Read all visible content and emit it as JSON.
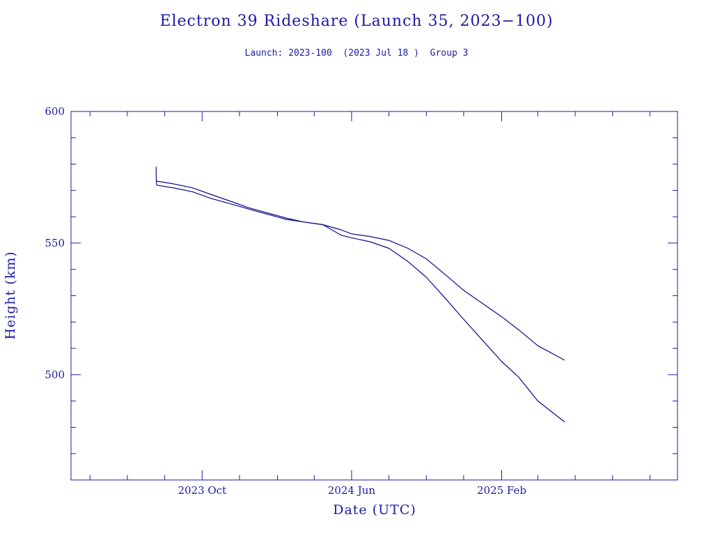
{
  "chart_data": {
    "type": "line",
    "title": "Electron 39 Rideshare (Launch 35, 2023−100)",
    "subtitle": "Launch: 2023-100  (2023 Jul 18 )  Group 3",
    "xlabel": "Date (UTC)",
    "ylabel": "Height (km)",
    "ylim": [
      460,
      600
    ],
    "xlim": [
      "2023-03-01",
      "2025-11-15"
    ],
    "x_ticks": [
      {
        "date": "2023-10-01",
        "label": "2023 Oct"
      },
      {
        "date": "2024-06-01",
        "label": "2024 Jun"
      },
      {
        "date": "2025-02-01",
        "label": "2025 Feb"
      }
    ],
    "y_ticks": [
      {
        "value": 500,
        "label": "500"
      },
      {
        "value": 550,
        "label": "550"
      },
      {
        "value": 600,
        "label": "600"
      }
    ],
    "grid": false,
    "series": [
      {
        "x": [
          "2023-07-18",
          "2023-07-18",
          "2023-07-19",
          "2023-08-15",
          "2023-09-15",
          "2023-10-15",
          "2023-11-15",
          "2023-12-15",
          "2024-01-15",
          "2024-02-15",
          "2024-03-15",
          "2024-04-15",
          "2024-05-15",
          "2024-06-01",
          "2024-07-01",
          "2024-08-01",
          "2024-09-01",
          "2024-10-01",
          "2024-11-01",
          "2024-12-01",
          "2025-01-01",
          "2025-02-01",
          "2025-03-01",
          "2025-04-01",
          "2025-05-15"
        ],
        "y": [
          579,
          574,
          573.5,
          572.5,
          571,
          568.5,
          566,
          563.5,
          561.5,
          559.5,
          558,
          557,
          555,
          553.5,
          552.5,
          551,
          548,
          544,
          538,
          532,
          527,
          522,
          517,
          511,
          505.5
        ]
      },
      {
        "x": [
          "2023-07-18",
          "2023-07-19",
          "2023-08-15",
          "2023-09-15",
          "2023-10-15",
          "2023-11-15",
          "2023-12-15",
          "2024-01-15",
          "2024-02-15",
          "2024-03-15",
          "2024-04-15",
          "2024-05-15",
          "2024-06-01",
          "2024-07-01",
          "2024-08-01",
          "2024-09-01",
          "2024-10-01",
          "2024-11-01",
          "2024-12-01",
          "2025-01-01",
          "2025-02-01",
          "2025-03-01",
          "2025-04-01",
          "2025-05-15"
        ],
        "y": [
          573.5,
          572,
          571,
          569.5,
          567,
          565,
          563,
          561,
          559,
          558,
          557,
          553,
          552,
          550.5,
          548,
          543,
          537,
          529,
          521,
          513,
          505,
          499,
          490,
          482
        ]
      }
    ],
    "colors": {
      "text": "#1a1aa6",
      "line": "#0a0a8c"
    }
  }
}
